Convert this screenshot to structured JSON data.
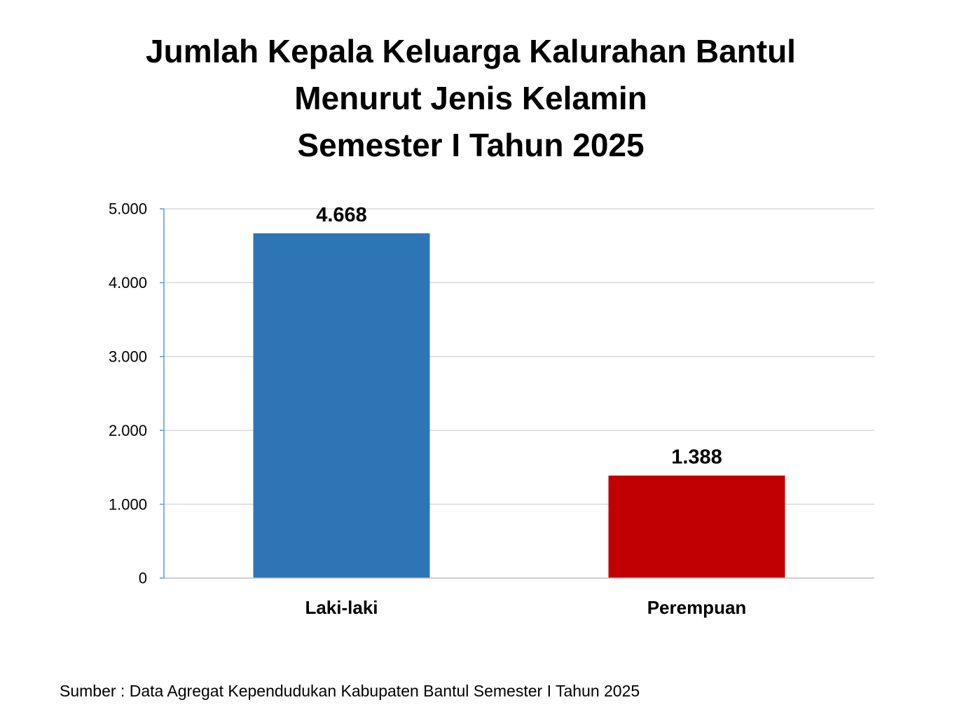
{
  "chart_data": {
    "type": "bar",
    "title": [
      "Jumlah Kepala Keluarga Kalurahan Bantul",
      "Menurut Jenis Kelamin",
      "Semester I Tahun 2025"
    ],
    "categories": [
      "Laki-laki",
      "Perempuan"
    ],
    "values": [
      4668,
      1388
    ],
    "value_labels": [
      "4.668",
      "1.388"
    ],
    "colors": [
      "#2E75B6",
      "#C00000"
    ],
    "ylim": [
      0,
      5000
    ],
    "yticks": [
      0,
      1000,
      2000,
      3000,
      4000,
      5000
    ],
    "ytick_labels": [
      "0",
      "1.000",
      "2.000",
      "3.000",
      "4.000",
      "5.000"
    ],
    "grid": true
  },
  "source": "Sumber : Data Agregat Kependudukan Kabupaten Bantul Semester I Tahun 2025"
}
